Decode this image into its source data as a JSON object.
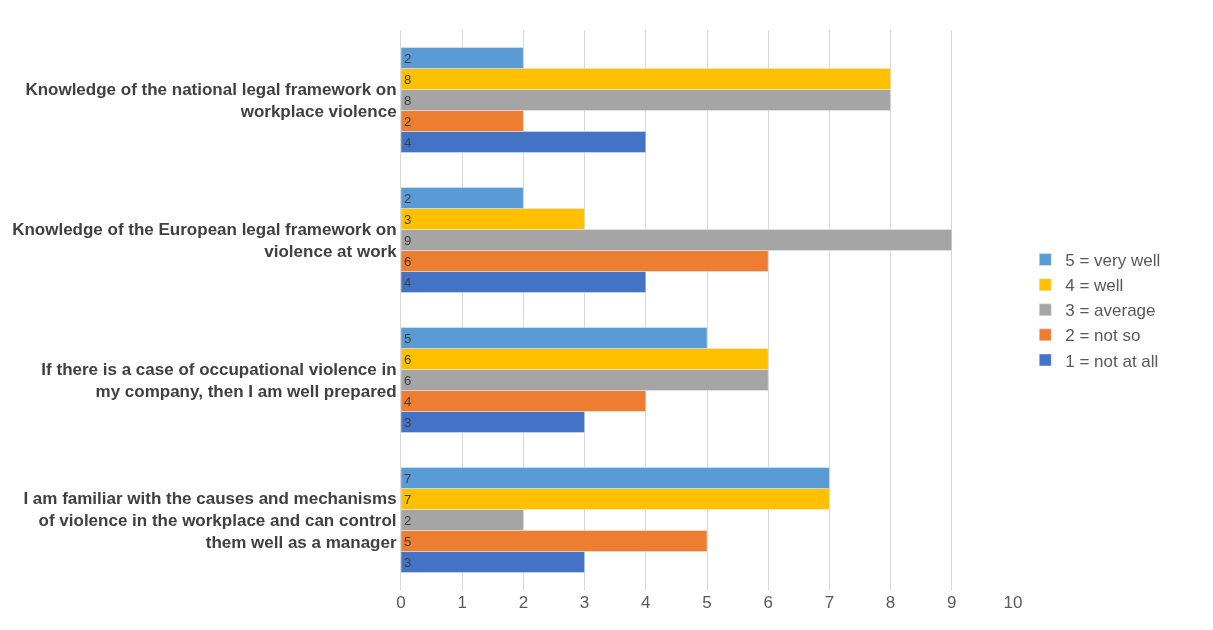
{
  "chart_data": {
    "type": "bar",
    "orientation": "horizontal",
    "categories": [
      "Knowledge of the national legal framework on workplace violence",
      "Knowledge of the European legal framework on violence at work",
      "If there is a case of occupational violence in my company, then I am well prepared",
      "I am familiar with the causes and mechanisms of violence in the workplace and can control them well as a manager"
    ],
    "series": [
      {
        "name": "1 = not at all",
        "color": "#4472c4",
        "values": [
          4,
          4,
          3,
          3
        ]
      },
      {
        "name": "2 = not so",
        "color": "#ed7d31",
        "values": [
          2,
          6,
          4,
          5
        ]
      },
      {
        "name": "3 = average",
        "color": "#a5a5a5",
        "values": [
          8,
          9,
          6,
          2
        ]
      },
      {
        "name": "4 = well",
        "color": "#ffc000",
        "values": [
          8,
          3,
          6,
          7
        ]
      },
      {
        "name": "5 = very well",
        "color": "#5b9bd5",
        "values": [
          2,
          2,
          5,
          7
        ]
      }
    ],
    "xlim": [
      0,
      10
    ],
    "xticks": [
      0,
      1,
      2,
      3,
      4,
      5,
      6,
      7,
      8,
      9,
      10
    ],
    "grid": "x",
    "legend": "right",
    "data_labels": true
  }
}
